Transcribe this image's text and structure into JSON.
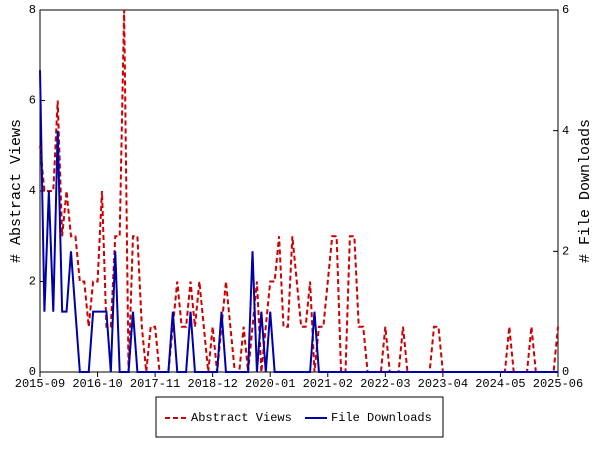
{
  "chart_data": {
    "type": "line",
    "ylabel": "# Abstract Views",
    "y2label": "# File Downloads",
    "categories": [
      "2015-09",
      null,
      null,
      null,
      null,
      null,
      null,
      null,
      null,
      null,
      null,
      null,
      null,
      "2016-10",
      null,
      null,
      null,
      null,
      null,
      null,
      null,
      null,
      null,
      null,
      null,
      null,
      "2017-11",
      null,
      null,
      null,
      null,
      null,
      null,
      null,
      null,
      null,
      null,
      null,
      null,
      "2018-12",
      null,
      null,
      null,
      null,
      null,
      null,
      null,
      null,
      null,
      null,
      null,
      null,
      "2020-01",
      null,
      null,
      null,
      null,
      null,
      null,
      null,
      null,
      null,
      null,
      null,
      null,
      "2021-02",
      null,
      null,
      null,
      null,
      null,
      null,
      null,
      null,
      null,
      null,
      null,
      null,
      "2022-03",
      null,
      null,
      null,
      null,
      null,
      null,
      null,
      null,
      null,
      null,
      null,
      null,
      "2023-04",
      null,
      null,
      null,
      null,
      null,
      null,
      null,
      null,
      null,
      null,
      null,
      null,
      "2024-05",
      null,
      null,
      null,
      null,
      null,
      null,
      null,
      null,
      null,
      null,
      null,
      null,
      "2025-06"
    ],
    "series": [
      {
        "name": "Abstract Views",
        "color": "#cc0000",
        "dash": true,
        "axis": "y",
        "values": [
          5,
          4,
          4,
          4,
          6,
          3,
          4,
          3,
          3,
          2,
          2,
          1,
          2,
          2,
          4,
          1,
          1,
          3,
          3,
          8,
          0,
          3,
          3,
          1,
          0,
          1,
          1,
          0,
          0,
          0,
          1,
          2,
          1,
          1,
          2,
          1,
          2,
          1,
          0,
          1,
          0,
          1,
          2,
          1,
          0,
          0,
          1,
          0,
          1,
          2,
          0,
          1,
          2,
          2,
          3,
          1,
          1,
          3,
          2,
          1,
          1,
          2,
          0,
          1,
          1,
          2,
          3,
          3,
          0,
          0,
          3,
          3,
          1,
          1,
          0,
          0,
          0,
          0,
          1,
          0,
          0,
          0,
          1,
          0,
          0,
          0,
          0,
          0,
          0,
          1,
          1,
          0,
          0,
          0,
          0,
          0,
          0,
          0,
          0,
          0,
          0,
          0,
          0,
          0,
          0,
          0,
          1,
          0,
          0,
          0,
          0,
          1,
          0,
          0,
          0,
          0,
          0,
          1
        ]
      },
      {
        "name": "File Downloads",
        "color": "#0000aa",
        "dash": false,
        "axis": "y2",
        "values": [
          5,
          1,
          3,
          1,
          4,
          1,
          1,
          2,
          1,
          0,
          0,
          0,
          1,
          1,
          1,
          1,
          0,
          2,
          0,
          0,
          0,
          1,
          0,
          0,
          0,
          0,
          0,
          0,
          0,
          0,
          1,
          0,
          0,
          0,
          1,
          0,
          0,
          0,
          0,
          0,
          0,
          1,
          0,
          0,
          0,
          0,
          0,
          0,
          2,
          0,
          1,
          0,
          1,
          0,
          0,
          0,
          0,
          0,
          0,
          0,
          0,
          0,
          1,
          0,
          0,
          0,
          0,
          0,
          0,
          0,
          0,
          0,
          0,
          0,
          0,
          0,
          0,
          0,
          0,
          0,
          0,
          0,
          0,
          0,
          0,
          0,
          0,
          0,
          0,
          0,
          0,
          0,
          0,
          0,
          0,
          0,
          0,
          0,
          0,
          0,
          0,
          0,
          0,
          0,
          0,
          0,
          0,
          0,
          0,
          0,
          0,
          0,
          0,
          0,
          0,
          0,
          0,
          0
        ]
      }
    ],
    "ylim": [
      0,
      8
    ],
    "yticks": [
      0,
      2,
      4,
      6,
      8
    ],
    "y2lim": [
      0,
      6
    ],
    "y2ticks": [
      0,
      2,
      4,
      6
    ]
  }
}
